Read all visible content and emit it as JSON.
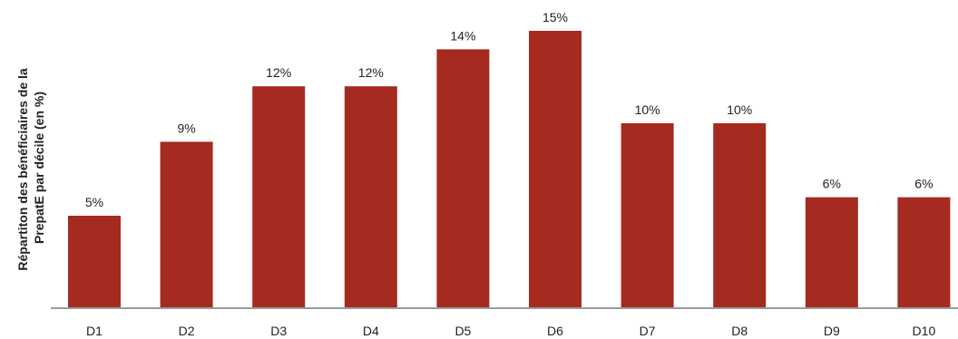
{
  "chart_data": {
    "type": "bar",
    "title": "",
    "xlabel": "",
    "ylabel": "Répartiton des bénéficiaires de la PrepatE par décile (en %)",
    "ylabel_lines": [
      "Répartiton des bénéficiaires de la",
      "PrepatE par décile (en %)"
    ],
    "categories": [
      "D1",
      "D2",
      "D3",
      "D4",
      "D5",
      "D6",
      "D7",
      "D8",
      "D9",
      "D10"
    ],
    "values": [
      5,
      9,
      12,
      12,
      14,
      15,
      10,
      10,
      6,
      6
    ],
    "data_labels": [
      "5%",
      "9%",
      "12%",
      "12%",
      "14%",
      "15%",
      "10%",
      "10%",
      "6%",
      "6%"
    ],
    "ylim": [
      0,
      15
    ],
    "grid": false,
    "legend": "none",
    "colors": {
      "bar": "#a52a20",
      "axis": "#9a9a9a",
      "text": "#222222"
    }
  }
}
